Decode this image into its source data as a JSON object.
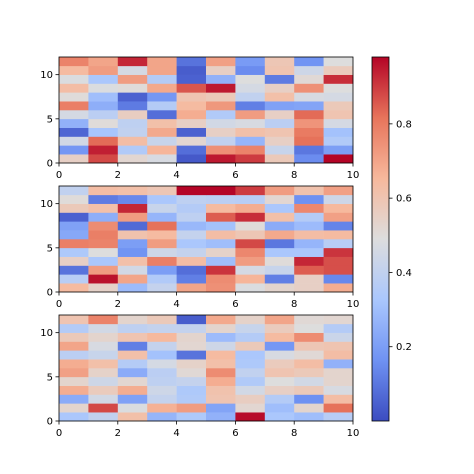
{
  "chart_data": {
    "type": "heatmap",
    "colormap": "coolwarm",
    "colormap_stops": [
      "#3b4cc0",
      "#6f92f3",
      "#aac7fd",
      "#dddddd",
      "#f7b89c",
      "#e7745b",
      "#b40426"
    ],
    "colorbar": {
      "range": [
        0.0,
        0.98
      ],
      "ticks": [
        0.2,
        0.4,
        0.6,
        0.8
      ],
      "tick_labels": [
        "0.2",
        "0.4",
        "0.6",
        "0.8"
      ]
    },
    "panels": [
      {
        "x_ticks": [
          0,
          2,
          4,
          6,
          8,
          10
        ],
        "y_ticks": [
          0,
          5,
          10
        ],
        "xlim": [
          0,
          10
        ],
        "ylim": [
          0,
          12
        ],
        "values": [
          [
            0.55,
            0.88,
            0.52,
            0.47,
            0.03,
            0.95,
            0.9,
            0.58,
            0.15,
            0.99
          ],
          [
            0.18,
            0.94,
            0.35,
            0.66,
            0.08,
            0.75,
            0.78,
            0.42,
            0.1,
            0.2
          ],
          [
            0.45,
            0.83,
            0.63,
            0.42,
            0.52,
            0.4,
            0.27,
            0.55,
            0.82,
            0.35
          ],
          [
            0.06,
            0.32,
            0.4,
            0.69,
            0.05,
            0.55,
            0.62,
            0.6,
            0.8,
            0.31
          ],
          [
            0.26,
            0.5,
            0.39,
            0.62,
            0.55,
            0.45,
            0.47,
            0.38,
            0.74,
            0.46
          ],
          [
            0.46,
            0.38,
            0.56,
            0.08,
            0.68,
            0.35,
            0.72,
            0.55,
            0.83,
            0.6
          ],
          [
            0.79,
            0.25,
            0.11,
            0.36,
            0.64,
            0.73,
            0.12,
            0.21,
            0.22,
            0.58
          ],
          [
            0.5,
            0.3,
            0.05,
            0.18,
            0.6,
            0.58,
            0.4,
            0.62,
            0.47,
            0.46
          ],
          [
            0.63,
            0.48,
            0.5,
            0.69,
            0.86,
            0.95,
            0.46,
            0.55,
            0.75,
            0.49
          ],
          [
            0.48,
            0.33,
            0.72,
            0.36,
            0.05,
            0.26,
            0.49,
            0.11,
            0.51,
            0.92
          ],
          [
            0.64,
            0.72,
            0.46,
            0.7,
            0.04,
            0.55,
            0.15,
            0.6,
            0.44,
            0.57
          ],
          [
            0.78,
            0.7,
            0.93,
            0.7,
            0.09,
            0.71,
            0.19,
            0.59,
            0.17,
            0.49
          ]
        ]
      },
      {
        "x_ticks": [
          0,
          2,
          4,
          6,
          8,
          10
        ],
        "y_ticks": [
          0,
          5,
          10
        ],
        "xlim": [
          0,
          10
        ],
        "ylim": [
          0,
          12
        ],
        "values": [
          [
            0.64,
            0.54,
            0.29,
            0.41,
            0.7,
            0.75,
            0.48,
            0.53,
            0.55,
            0.68
          ],
          [
            0.37,
            0.96,
            0.7,
            0.35,
            0.12,
            0.76,
            0.66,
            0.12,
            0.55,
            0.14
          ],
          [
            0.09,
            0.72,
            0.45,
            0.2,
            0.08,
            0.91,
            0.46,
            0.42,
            0.85,
            0.87
          ],
          [
            0.55,
            0.33,
            0.62,
            0.79,
            0.63,
            0.3,
            0.72,
            0.5,
            0.93,
            0.87
          ],
          [
            0.34,
            0.49,
            0.17,
            0.44,
            0.41,
            0.54,
            0.77,
            0.33,
            0.33,
            0.91
          ],
          [
            0.79,
            0.78,
            0.2,
            0.72,
            0.33,
            0.3,
            0.88,
            0.1,
            0.27,
            0.37
          ],
          [
            0.23,
            0.79,
            0.61,
            0.64,
            0.41,
            0.63,
            0.59,
            0.69,
            0.63,
            0.64
          ],
          [
            0.21,
            0.76,
            0.07,
            0.82,
            0.28,
            0.31,
            0.5,
            0.24,
            0.29,
            0.13
          ],
          [
            0.05,
            0.25,
            0.72,
            0.27,
            0.39,
            0.85,
            0.92,
            0.62,
            0.36,
            0.71
          ],
          [
            0.58,
            0.62,
            0.93,
            0.42,
            0.36,
            0.64,
            0.68,
            0.33,
            0.77,
            0.65
          ],
          [
            0.5,
            0.11,
            0.14,
            0.33,
            0.39,
            0.38,
            0.37,
            0.52,
            0.16,
            0.44
          ],
          [
            0.4,
            0.63,
            0.62,
            0.59,
            0.98,
            0.98,
            0.9,
            0.72,
            0.61,
            0.71
          ]
        ]
      },
      {
        "x_ticks": [
          0,
          2,
          4,
          6,
          8,
          10
        ],
        "y_ticks": [
          0,
          5,
          10
        ],
        "xlim": [
          0,
          10
        ],
        "ylim": [
          0,
          12
        ],
        "values": [
          [
            0.33,
            0.4,
            0.62,
            0.27,
            0.34,
            0.26,
            0.97,
            0.33,
            0.3,
            0.37
          ],
          [
            0.53,
            0.88,
            0.48,
            0.67,
            0.72,
            0.22,
            0.52,
            0.3,
            0.53,
            0.82
          ],
          [
            0.24,
            0.45,
            0.21,
            0.41,
            0.35,
            0.6,
            0.56,
            0.36,
            0.16,
            0.63
          ],
          [
            0.68,
            0.57,
            0.68,
            0.44,
            0.34,
            0.61,
            0.45,
            0.55,
            0.58,
            0.47
          ],
          [
            0.53,
            0.44,
            0.52,
            0.39,
            0.41,
            0.68,
            0.35,
            0.49,
            0.45,
            0.53
          ],
          [
            0.71,
            0.54,
            0.24,
            0.38,
            0.51,
            0.76,
            0.4,
            0.6,
            0.58,
            0.53
          ],
          [
            0.68,
            0.62,
            0.36,
            0.46,
            0.54,
            0.62,
            0.34,
            0.57,
            0.63,
            0.26
          ],
          [
            0.38,
            0.42,
            0.62,
            0.31,
            0.09,
            0.64,
            0.33,
            0.47,
            0.51,
            0.63
          ],
          [
            0.7,
            0.47,
            0.12,
            0.41,
            0.52,
            0.44,
            0.58,
            0.18,
            0.59,
            0.6
          ],
          [
            0.58,
            0.53,
            0.6,
            0.65,
            0.53,
            0.29,
            0.36,
            0.64,
            0.76,
            0.43
          ],
          [
            0.36,
            0.45,
            0.39,
            0.41,
            0.41,
            0.53,
            0.42,
            0.57,
            0.49,
            0.36
          ],
          [
            0.6,
            0.78,
            0.53,
            0.58,
            0.04,
            0.69,
            0.54,
            0.7,
            0.51,
            0.52
          ]
        ]
      }
    ]
  }
}
